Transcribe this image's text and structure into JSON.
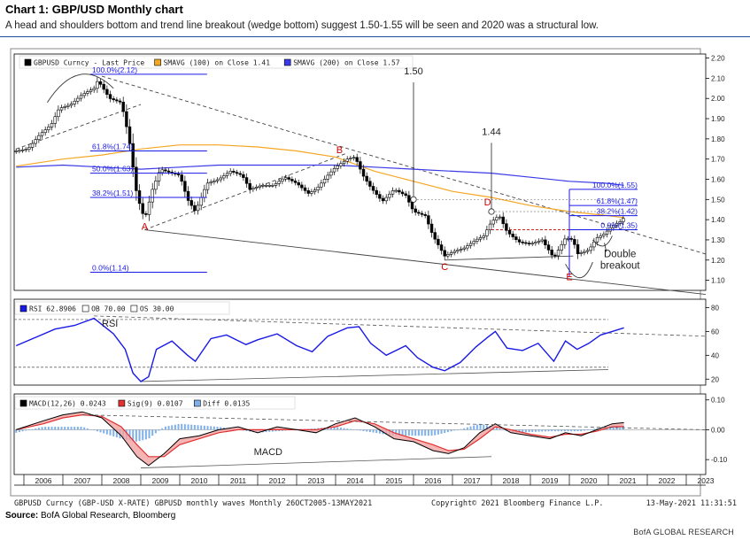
{
  "title": "Chart 1: GBP/USD Monthly chart",
  "subtitle": "A head and shoulders bottom and trend line breakout (wedge bottom) suggest 1.50-1.55 will be seen and 2020 was a structural low.",
  "source_label": "Source:",
  "source_text": "BofA Global Research, Bloomberg",
  "brand": "BofA GLOBAL RESEARCH",
  "colors": {
    "price": "#000000",
    "sma100": "#f5a623",
    "sma200": "#3a3ae6",
    "rsi": "#1a1ae6",
    "macd": "#000000",
    "signal": "#e03030",
    "diff": "#7fb0ea",
    "fib": "#1a1ae6",
    "annotation": "#cc0000"
  },
  "footer": {
    "left": "GBPUSD Curncy (GBP-USD X-RATE) GBPUSD monthly waves  Monthly 26OCT2005-13MAY2021",
    "center": "Copyright© 2021 Bloomberg Finance L.P.",
    "right": "13-May-2021 11:31:51"
  },
  "chart_data": [
    {
      "type": "candlestick",
      "legend": [
        {
          "label": "GBPUSD Curncy - Last Price",
          "color": "#000000"
        },
        {
          "label": "SMAVG (100)  on Close 1.41",
          "color": "#f5a623"
        },
        {
          "label": "SMAVG (200)  on Close 1.57",
          "color": "#3a3ae6"
        }
      ],
      "x_ticks": [
        "2006",
        "2007",
        "2008",
        "2009",
        "2010",
        "2011",
        "2012",
        "2013",
        "2014",
        "2015",
        "2016",
        "2017",
        "2018",
        "2019",
        "2020",
        "2021",
        "2022",
        "2023"
      ],
      "y_ticks": [
        "2.20",
        "2.10",
        "2.00",
        "1.90",
        "1.80",
        "1.70",
        "1.60",
        "1.50",
        "1.40",
        "1.30",
        "1.20",
        "1.10"
      ],
      "ylim": [
        1.05,
        2.22
      ],
      "price_path": [
        [
          2005.8,
          1.74
        ],
        [
          2006.1,
          1.75
        ],
        [
          2006.4,
          1.82
        ],
        [
          2006.7,
          1.87
        ],
        [
          2006.9,
          1.95
        ],
        [
          2007.2,
          1.97
        ],
        [
          2007.5,
          2.02
        ],
        [
          2007.8,
          2.05
        ],
        [
          2007.9,
          2.09
        ],
        [
          2008.2,
          2.0
        ],
        [
          2008.5,
          1.98
        ],
        [
          2008.7,
          1.8
        ],
        [
          2008.9,
          1.52
        ],
        [
          2009.1,
          1.4
        ],
        [
          2009.3,
          1.55
        ],
        [
          2009.5,
          1.65
        ],
        [
          2009.8,
          1.63
        ],
        [
          2010.0,
          1.62
        ],
        [
          2010.2,
          1.5
        ],
        [
          2010.4,
          1.44
        ],
        [
          2010.7,
          1.58
        ],
        [
          2011.0,
          1.6
        ],
        [
          2011.3,
          1.64
        ],
        [
          2011.6,
          1.62
        ],
        [
          2011.8,
          1.55
        ],
        [
          2012.1,
          1.57
        ],
        [
          2012.4,
          1.57
        ],
        [
          2012.7,
          1.61
        ],
        [
          2013.0,
          1.58
        ],
        [
          2013.3,
          1.53
        ],
        [
          2013.5,
          1.55
        ],
        [
          2013.8,
          1.62
        ],
        [
          2014.0,
          1.66
        ],
        [
          2014.3,
          1.7
        ],
        [
          2014.5,
          1.71
        ],
        [
          2014.7,
          1.62
        ],
        [
          2014.9,
          1.56
        ],
        [
          2015.2,
          1.49
        ],
        [
          2015.5,
          1.55
        ],
        [
          2015.8,
          1.52
        ],
        [
          2016.0,
          1.44
        ],
        [
          2016.3,
          1.42
        ],
        [
          2016.5,
          1.32
        ],
        [
          2016.8,
          1.22
        ],
        [
          2017.0,
          1.24
        ],
        [
          2017.3,
          1.26
        ],
        [
          2017.6,
          1.3
        ],
        [
          2017.8,
          1.32
        ],
        [
          2018.0,
          1.39
        ],
        [
          2018.2,
          1.42
        ],
        [
          2018.4,
          1.34
        ],
        [
          2018.7,
          1.29
        ],
        [
          2019.0,
          1.28
        ],
        [
          2019.3,
          1.3
        ],
        [
          2019.6,
          1.21
        ],
        [
          2019.9,
          1.31
        ],
        [
          2020.1,
          1.3
        ],
        [
          2020.2,
          1.23
        ],
        [
          2020.5,
          1.25
        ],
        [
          2020.7,
          1.31
        ],
        [
          2020.9,
          1.33
        ],
        [
          2021.1,
          1.37
        ],
        [
          2021.3,
          1.39
        ],
        [
          2021.4,
          1.41
        ]
      ],
      "sma100_path": [
        [
          2005.8,
          1.665
        ],
        [
          2007.0,
          1.7
        ],
        [
          2008.0,
          1.72
        ],
        [
          2009.0,
          1.75
        ],
        [
          2010.0,
          1.77
        ],
        [
          2011.0,
          1.77
        ],
        [
          2012.0,
          1.76
        ],
        [
          2013.0,
          1.74
        ],
        [
          2014.0,
          1.71
        ],
        [
          2015.0,
          1.64
        ],
        [
          2016.0,
          1.59
        ],
        [
          2017.0,
          1.54
        ],
        [
          2018.0,
          1.51
        ],
        [
          2019.0,
          1.47
        ],
        [
          2020.0,
          1.44
        ],
        [
          2021.0,
          1.42
        ],
        [
          2021.4,
          1.41
        ]
      ],
      "sma200_path": [
        [
          2005.8,
          1.66
        ],
        [
          2007.0,
          1.67
        ],
        [
          2008.0,
          1.66
        ],
        [
          2009.0,
          1.65
        ],
        [
          2010.0,
          1.66
        ],
        [
          2011.0,
          1.67
        ],
        [
          2012.0,
          1.67
        ],
        [
          2013.0,
          1.67
        ],
        [
          2014.0,
          1.67
        ],
        [
          2015.0,
          1.66
        ],
        [
          2016.0,
          1.65
        ],
        [
          2017.0,
          1.64
        ],
        [
          2018.0,
          1.63
        ],
        [
          2019.0,
          1.61
        ],
        [
          2020.0,
          1.59
        ],
        [
          2021.0,
          1.58
        ],
        [
          2021.4,
          1.57
        ]
      ],
      "fib_left": [
        {
          "label": "100.0%(2.12)",
          "y": 2.12
        },
        {
          "label": "61.8%(1.74)",
          "y": 1.74
        },
        {
          "label": "50.0%(1.63)",
          "y": 1.63
        },
        {
          "label": "38.2%(1.51)",
          "y": 1.51
        },
        {
          "label": "0.0%(1.14)",
          "y": 1.14
        }
      ],
      "fib_right": [
        {
          "label": "100.0%(1.55)",
          "y": 1.55
        },
        {
          "label": "61.8%(1.47)",
          "y": 1.47
        },
        {
          "label": "38.2%(1.42)",
          "y": 1.42
        },
        {
          "label": "0.0%(1.35)",
          "y": 1.35
        }
      ],
      "markers": [
        {
          "label": "A",
          "x": 2009.1,
          "y": 1.35
        },
        {
          "label": "B",
          "x": 2014.1,
          "y": 1.73
        },
        {
          "label": "C",
          "x": 2016.8,
          "y": 1.15
        },
        {
          "label": "D",
          "x": 2017.9,
          "y": 1.47
        },
        {
          "label": "E",
          "x": 2020.0,
          "y": 1.1
        }
      ],
      "callouts": [
        {
          "label": "1.50",
          "x": 2016.0
        },
        {
          "label": "1.44",
          "x": 2018.0
        }
      ],
      "annotation": [
        "Double",
        "breakout"
      ]
    },
    {
      "type": "line",
      "name": "RSI",
      "legend": [
        {
          "label": "RSI 62.8906",
          "color": "#1a1ae6"
        },
        {
          "label": "OB 70.00",
          "color": "#ffffff"
        },
        {
          "label": "OS 30.00",
          "color": "#ffffff"
        }
      ],
      "y_ticks": [
        "80",
        "60",
        "40",
        "20"
      ],
      "ylim": [
        15,
        87
      ],
      "ob": 70,
      "os": 30,
      "label": "RSI",
      "path": [
        [
          2005.8,
          48
        ],
        [
          2006.3,
          55
        ],
        [
          2006.8,
          62
        ],
        [
          2007.3,
          65
        ],
        [
          2007.8,
          71
        ],
        [
          2008.3,
          58
        ],
        [
          2008.6,
          45
        ],
        [
          2008.8,
          25
        ],
        [
          2009.0,
          18
        ],
        [
          2009.2,
          22
        ],
        [
          2009.4,
          45
        ],
        [
          2009.8,
          52
        ],
        [
          2010.2,
          40
        ],
        [
          2010.4,
          35
        ],
        [
          2010.8,
          54
        ],
        [
          2011.2,
          57
        ],
        [
          2011.7,
          49
        ],
        [
          2012.0,
          53
        ],
        [
          2012.5,
          58
        ],
        [
          2013.0,
          48
        ],
        [
          2013.4,
          43
        ],
        [
          2013.8,
          56
        ],
        [
          2014.3,
          63
        ],
        [
          2014.6,
          64
        ],
        [
          2014.9,
          50
        ],
        [
          2015.3,
          40
        ],
        [
          2015.8,
          48
        ],
        [
          2016.1,
          38
        ],
        [
          2016.5,
          30
        ],
        [
          2016.8,
          27
        ],
        [
          2017.2,
          34
        ],
        [
          2017.6,
          47
        ],
        [
          2017.9,
          55
        ],
        [
          2018.1,
          60
        ],
        [
          2018.4,
          46
        ],
        [
          2018.8,
          44
        ],
        [
          2019.2,
          50
        ],
        [
          2019.6,
          35
        ],
        [
          2019.9,
          52
        ],
        [
          2020.2,
          45
        ],
        [
          2020.5,
          50
        ],
        [
          2020.8,
          57
        ],
        [
          2021.1,
          60
        ],
        [
          2021.4,
          63
        ]
      ]
    },
    {
      "type": "line",
      "name": "MACD",
      "legend": [
        {
          "label": "MACD(12,26)  0.0243",
          "color": "#000000"
        },
        {
          "label": "Sig(9)  0.0107",
          "color": "#e03030"
        },
        {
          "label": "Diff  0.0135",
          "color": "#7fb0ea"
        }
      ],
      "y_ticks": [
        "0.10",
        "0.00",
        "-0.10"
      ],
      "ylim": [
        -0.15,
        0.12
      ],
      "label": "MACD",
      "macd_path": [
        [
          2005.8,
          0.0
        ],
        [
          2006.5,
          0.03
        ],
        [
          2007.0,
          0.05
        ],
        [
          2007.5,
          0.06
        ],
        [
          2008.0,
          0.04
        ],
        [
          2008.5,
          -0.02
        ],
        [
          2008.9,
          -0.09
        ],
        [
          2009.2,
          -0.12
        ],
        [
          2009.6,
          -0.08
        ],
        [
          2010.0,
          -0.03
        ],
        [
          2010.5,
          -0.02
        ],
        [
          2011.0,
          0.0
        ],
        [
          2011.5,
          0.01
        ],
        [
          2012.0,
          -0.01
        ],
        [
          2012.5,
          0.01
        ],
        [
          2013.0,
          0.0
        ],
        [
          2013.5,
          -0.01
        ],
        [
          2014.0,
          0.02
        ],
        [
          2014.5,
          0.04
        ],
        [
          2015.0,
          0.01
        ],
        [
          2015.5,
          -0.03
        ],
        [
          2016.0,
          -0.04
        ],
        [
          2016.5,
          -0.07
        ],
        [
          2016.9,
          -0.08
        ],
        [
          2017.3,
          -0.06
        ],
        [
          2017.7,
          -0.01
        ],
        [
          2018.1,
          0.02
        ],
        [
          2018.5,
          -0.01
        ],
        [
          2019.0,
          -0.02
        ],
        [
          2019.5,
          -0.03
        ],
        [
          2019.9,
          -0.01
        ],
        [
          2020.3,
          -0.02
        ],
        [
          2020.7,
          0.0
        ],
        [
          2021.1,
          0.02
        ],
        [
          2021.4,
          0.024
        ]
      ],
      "signal_path": [
        [
          2005.8,
          0.0
        ],
        [
          2006.5,
          0.02
        ],
        [
          2007.0,
          0.04
        ],
        [
          2007.5,
          0.05
        ],
        [
          2008.0,
          0.045
        ],
        [
          2008.5,
          0.01
        ],
        [
          2008.9,
          -0.05
        ],
        [
          2009.2,
          -0.09
        ],
        [
          2009.6,
          -0.09
        ],
        [
          2010.0,
          -0.05
        ],
        [
          2010.5,
          -0.03
        ],
        [
          2011.0,
          -0.01
        ],
        [
          2011.5,
          0.0
        ],
        [
          2012.0,
          0.0
        ],
        [
          2012.5,
          0.0
        ],
        [
          2013.0,
          0.0
        ],
        [
          2013.5,
          0.0
        ],
        [
          2014.0,
          0.01
        ],
        [
          2014.5,
          0.03
        ],
        [
          2015.0,
          0.02
        ],
        [
          2015.5,
          -0.01
        ],
        [
          2016.0,
          -0.03
        ],
        [
          2016.5,
          -0.05
        ],
        [
          2016.9,
          -0.07
        ],
        [
          2017.3,
          -0.065
        ],
        [
          2017.7,
          -0.03
        ],
        [
          2018.1,
          0.01
        ],
        [
          2018.5,
          0.0
        ],
        [
          2019.0,
          -0.015
        ],
        [
          2019.5,
          -0.025
        ],
        [
          2019.9,
          -0.015
        ],
        [
          2020.3,
          -0.015
        ],
        [
          2020.7,
          -0.005
        ],
        [
          2021.1,
          0.01
        ],
        [
          2021.4,
          0.011
        ]
      ],
      "hist_path": [
        [
          2005.8,
          -0.01
        ],
        [
          2006.5,
          0.01
        ],
        [
          2007.5,
          0.01
        ],
        [
          2008.5,
          -0.03
        ],
        [
          2008.9,
          -0.04
        ],
        [
          2009.2,
          -0.03
        ],
        [
          2009.6,
          0.01
        ],
        [
          2010.0,
          0.02
        ],
        [
          2011.0,
          0.01
        ],
        [
          2012.0,
          -0.01
        ],
        [
          2013.0,
          0.0
        ],
        [
          2014.0,
          0.01
        ],
        [
          2015.0,
          -0.01
        ],
        [
          2015.5,
          -0.02
        ],
        [
          2016.5,
          -0.02
        ],
        [
          2017.3,
          0.005
        ],
        [
          2017.7,
          0.02
        ],
        [
          2018.1,
          0.01
        ],
        [
          2018.5,
          -0.01
        ],
        [
          2019.5,
          -0.005
        ],
        [
          2020.3,
          -0.005
        ],
        [
          2020.7,
          0.005
        ],
        [
          2021.1,
          0.01
        ],
        [
          2021.4,
          0.013
        ]
      ]
    }
  ]
}
